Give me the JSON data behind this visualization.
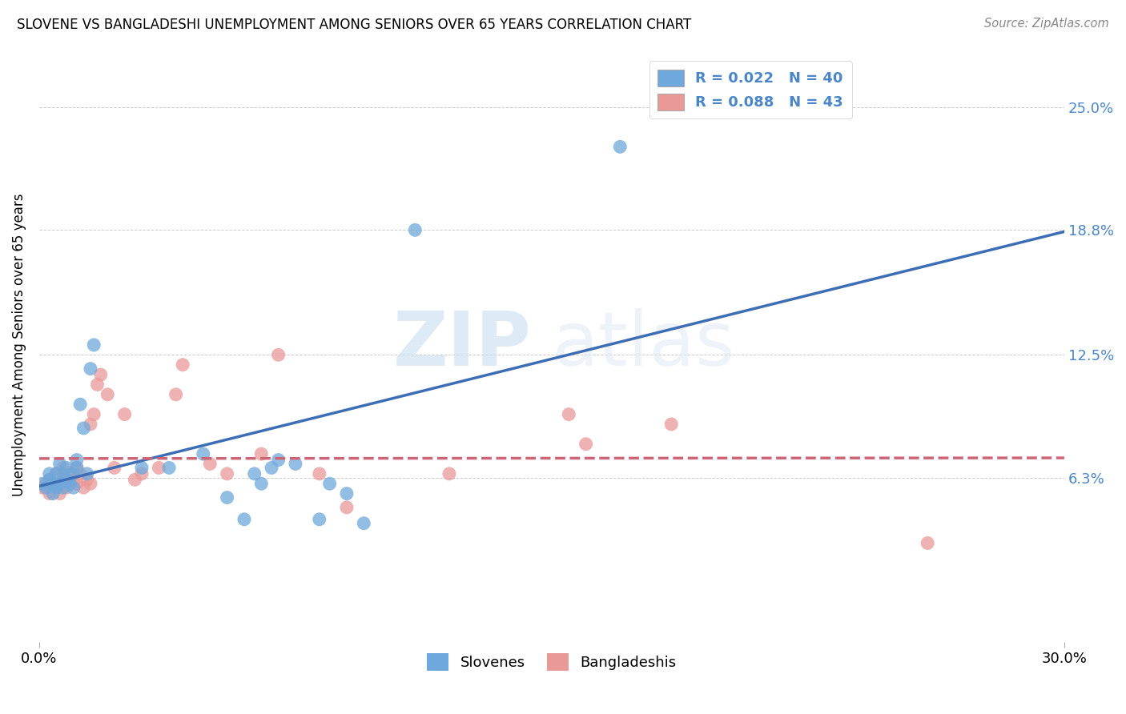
{
  "title": "SLOVENE VS BANGLADESHI UNEMPLOYMENT AMONG SENIORS OVER 65 YEARS CORRELATION CHART",
  "source": "Source: ZipAtlas.com",
  "ylabel": "Unemployment Among Seniors over 65 years",
  "xlim": [
    0.0,
    0.3
  ],
  "ylim": [
    -0.02,
    0.28
  ],
  "xtick_labels": [
    "0.0%",
    "30.0%"
  ],
  "xtick_positions": [
    0.0,
    0.3
  ],
  "ytick_labels": [
    "6.3%",
    "12.5%",
    "18.8%",
    "25.0%"
  ],
  "ytick_positions": [
    0.063,
    0.125,
    0.188,
    0.25
  ],
  "slovene_color": "#6fa8dc",
  "bangladeshi_color": "#ea9999",
  "slovene_line_color": "#3d6eb5",
  "bangladeshi_line_color": "#cc6677",
  "slovene_r": 0.022,
  "slovene_n": 40,
  "bangladeshi_r": 0.088,
  "bangladeshi_n": 43,
  "slovene_x": [
    0.001,
    0.002,
    0.003,
    0.003,
    0.004,
    0.004,
    0.005,
    0.005,
    0.006,
    0.006,
    0.007,
    0.007,
    0.008,
    0.008,
    0.009,
    0.01,
    0.01,
    0.011,
    0.011,
    0.012,
    0.013,
    0.014,
    0.015,
    0.016,
    0.03,
    0.038,
    0.048,
    0.055,
    0.06,
    0.063,
    0.065,
    0.068,
    0.07,
    0.075,
    0.082,
    0.085,
    0.09,
    0.095,
    0.11,
    0.17
  ],
  "slovene_y": [
    0.06,
    0.058,
    0.062,
    0.065,
    0.055,
    0.06,
    0.058,
    0.065,
    0.06,
    0.07,
    0.058,
    0.065,
    0.068,
    0.062,
    0.06,
    0.065,
    0.058,
    0.068,
    0.072,
    0.1,
    0.088,
    0.065,
    0.118,
    0.13,
    0.068,
    0.068,
    0.075,
    0.053,
    0.042,
    0.065,
    0.06,
    0.068,
    0.072,
    0.07,
    0.042,
    0.06,
    0.055,
    0.04,
    0.188,
    0.23
  ],
  "bangladeshi_x": [
    0.001,
    0.002,
    0.003,
    0.003,
    0.004,
    0.005,
    0.005,
    0.006,
    0.007,
    0.007,
    0.008,
    0.008,
    0.009,
    0.01,
    0.011,
    0.011,
    0.012,
    0.013,
    0.014,
    0.015,
    0.015,
    0.016,
    0.017,
    0.018,
    0.02,
    0.022,
    0.025,
    0.028,
    0.03,
    0.035,
    0.04,
    0.042,
    0.05,
    0.055,
    0.065,
    0.07,
    0.082,
    0.09,
    0.12,
    0.155,
    0.16,
    0.185,
    0.26
  ],
  "bangladeshi_y": [
    0.058,
    0.06,
    0.055,
    0.062,
    0.058,
    0.06,
    0.065,
    0.055,
    0.062,
    0.068,
    0.058,
    0.06,
    0.065,
    0.062,
    0.068,
    0.06,
    0.065,
    0.058,
    0.062,
    0.06,
    0.09,
    0.095,
    0.11,
    0.115,
    0.105,
    0.068,
    0.095,
    0.062,
    0.065,
    0.068,
    0.105,
    0.12,
    0.07,
    0.065,
    0.075,
    0.125,
    0.065,
    0.048,
    0.065,
    0.095,
    0.08,
    0.09,
    0.03
  ],
  "watermark_zip": "ZIP",
  "watermark_atlas": "atlas",
  "background_color": "#ffffff",
  "grid_color": "#cccccc"
}
